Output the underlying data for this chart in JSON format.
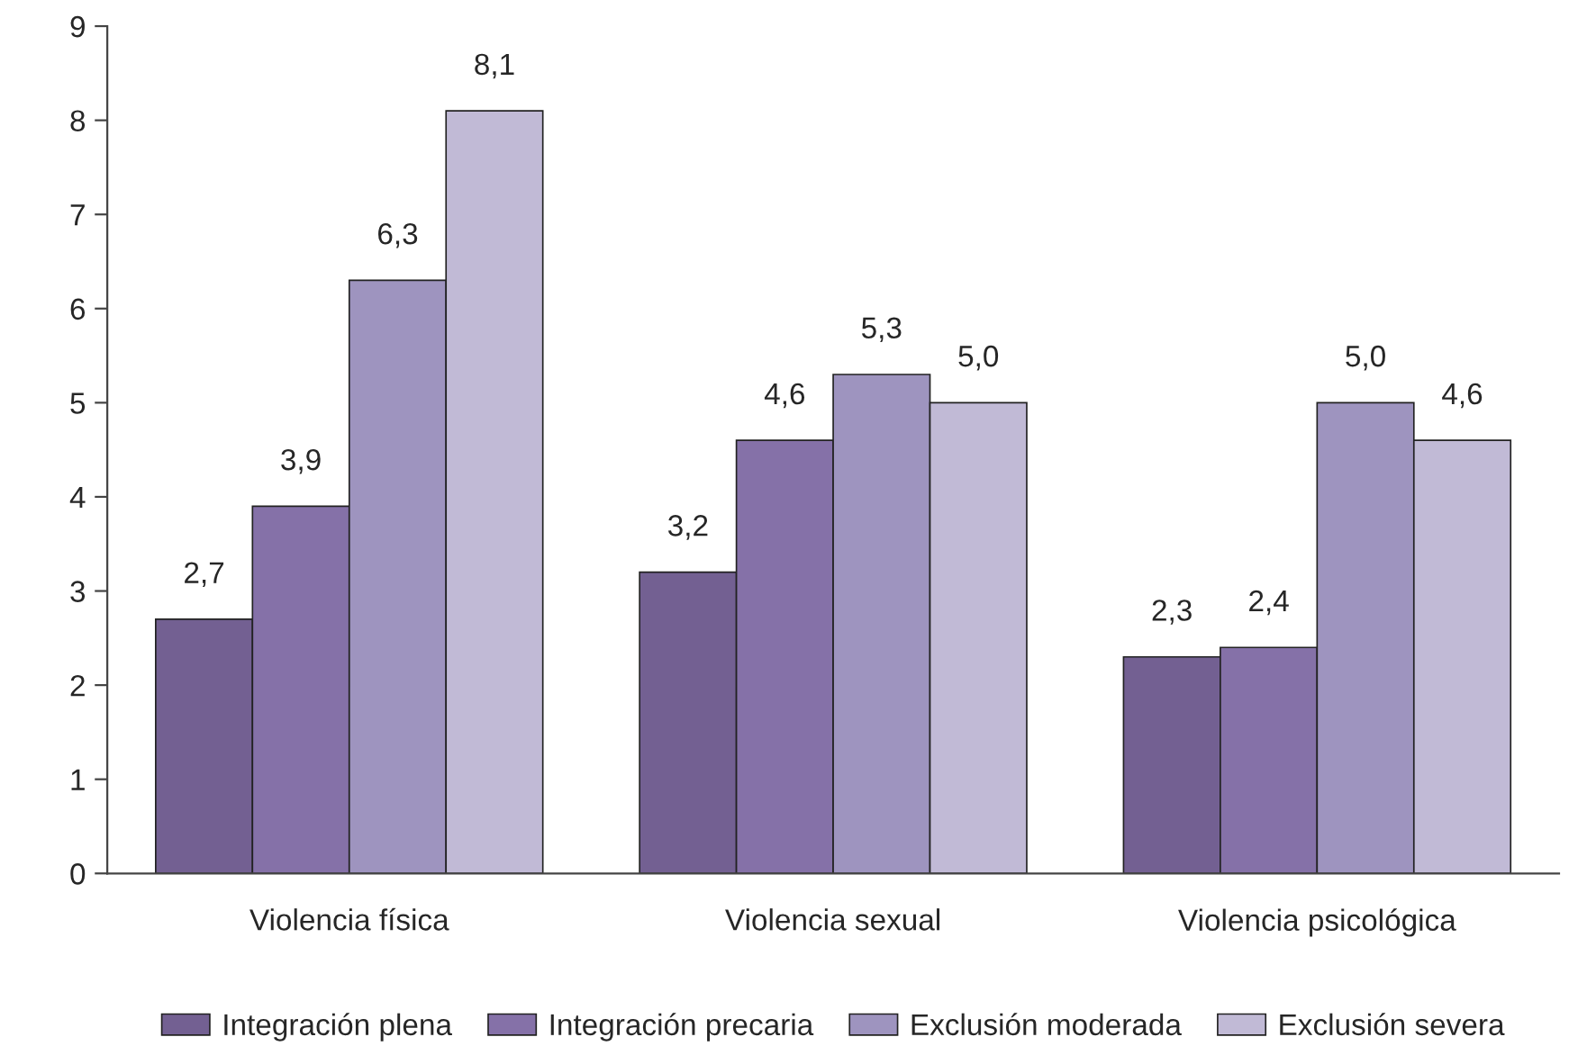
{
  "chart_data": {
    "type": "bar",
    "categories": [
      "Violencia física",
      "Violencia sexual",
      "Violencia psicológica"
    ],
    "series": [
      {
        "name": "Integración plena",
        "color": "#736092",
        "values": [
          2.7,
          3.2,
          2.3
        ],
        "value_labels": [
          "2,7",
          "3,2",
          "2,3"
        ]
      },
      {
        "name": "Integración precaria",
        "color": "#8571a8",
        "values": [
          3.9,
          4.6,
          2.4
        ],
        "value_labels": [
          "3,9",
          "4,6",
          "2,4"
        ]
      },
      {
        "name": "Exclusión moderada",
        "color": "#9e94bf",
        "values": [
          6.3,
          5.3,
          5.0
        ],
        "value_labels": [
          "6,3",
          "5,3",
          "5,0"
        ]
      },
      {
        "name": "Exclusión severa",
        "color": "#c1bad6",
        "values": [
          8.1,
          5.0,
          4.6
        ],
        "value_labels": [
          "8,1",
          "5,0",
          "4,6"
        ]
      }
    ],
    "ylim": [
      0,
      9
    ],
    "yticks": [
      0,
      1,
      2,
      3,
      4,
      5,
      6,
      7,
      8,
      9
    ],
    "grid": false,
    "legend": "bottom"
  }
}
